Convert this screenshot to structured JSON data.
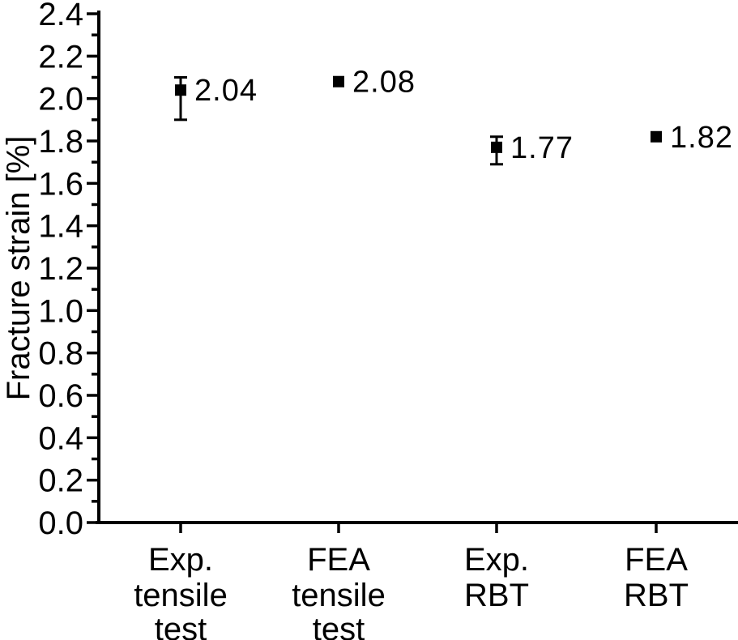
{
  "chart_data": {
    "type": "scatter",
    "title": "",
    "xlabel": "",
    "ylabel": "Fracture strain [%]",
    "ylim": [
      0.0,
      2.4
    ],
    "y_major_tick_step": 0.2,
    "y_minor_tick_step": 0.1,
    "y_tick_labels": [
      "0.0",
      "0.2",
      "0.4",
      "0.6",
      "0.8",
      "1.0",
      "1.2",
      "1.4",
      "1.6",
      "1.8",
      "2.0",
      "2.2",
      "2.4"
    ],
    "grid": false,
    "legend": null,
    "marker": "filled-square",
    "colors": {
      "foreground": "#000000",
      "background": "#ffffff"
    },
    "categories": [
      {
        "name": "Exp. tensile test",
        "label_lines": [
          "Exp.",
          "tensile",
          "test"
        ]
      },
      {
        "name": "FEA tensile test",
        "label_lines": [
          "FEA",
          "tensile",
          "test"
        ]
      },
      {
        "name": "Exp. RBT",
        "label_lines": [
          "Exp.",
          "RBT"
        ]
      },
      {
        "name": "FEA RBT",
        "label_lines": [
          "FEA",
          "RBT"
        ]
      }
    ],
    "points": [
      {
        "category": "Exp. tensile test",
        "value": 2.04,
        "value_label": "2.04",
        "error_upper": 2.1,
        "error_lower": 1.9
      },
      {
        "category": "FEA tensile test",
        "value": 2.08,
        "value_label": "2.08",
        "error_upper": null,
        "error_lower": null
      },
      {
        "category": "Exp. RBT",
        "value": 1.77,
        "value_label": "1.77",
        "error_upper": 1.82,
        "error_lower": 1.69
      },
      {
        "category": "FEA RBT",
        "value": 1.82,
        "value_label": "1.82",
        "error_upper": null,
        "error_lower": null
      }
    ]
  }
}
